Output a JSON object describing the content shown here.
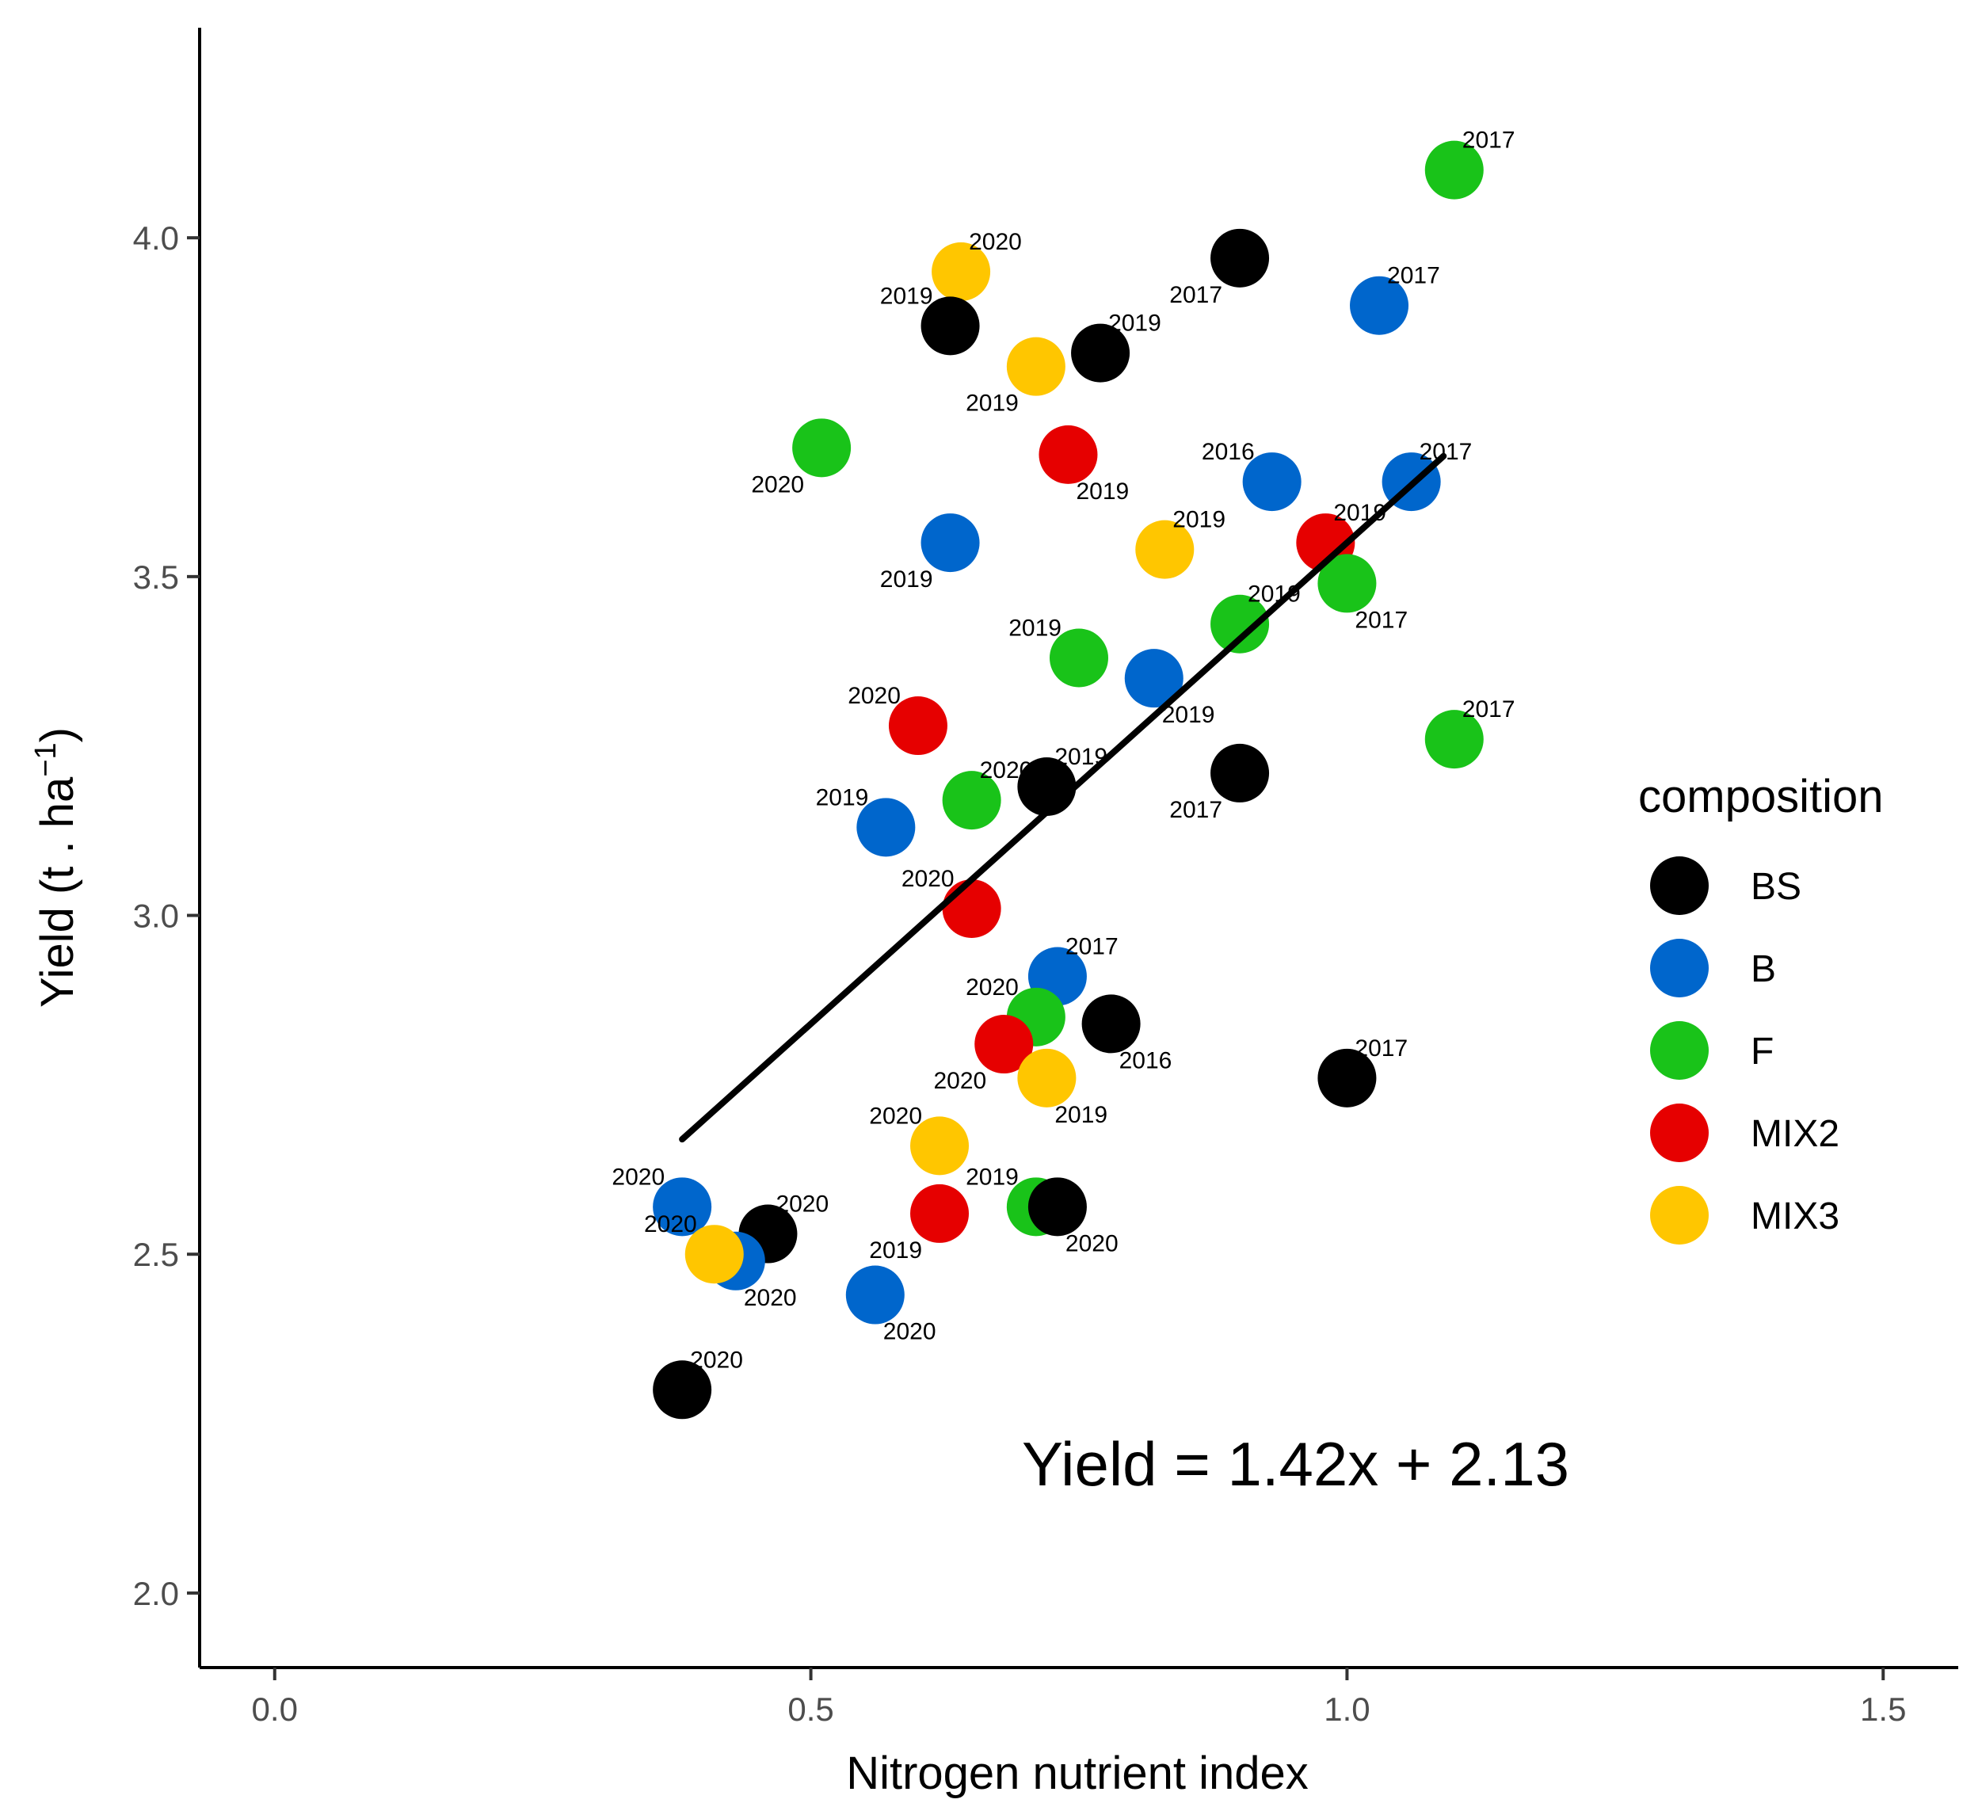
{
  "chart_data": {
    "type": "scatter",
    "title": "",
    "xlabel": "Nitrogen nutrient index",
    "ylabel_main": "Yield (t . ha",
    "ylabel_sup": "−1",
    "ylabel_close": ")",
    "xlim": [
      -0.07,
      1.57
    ],
    "ylim": [
      1.89,
      4.31
    ],
    "xticks": [
      0.0,
      0.5,
      1.0,
      1.5
    ],
    "xtick_labels": [
      "0.0",
      "0.5",
      "1.0",
      "1.5"
    ],
    "yticks": [
      2.0,
      2.5,
      3.0,
      3.5,
      4.0
    ],
    "ytick_labels": [
      "2.0",
      "2.5",
      "3.0",
      "3.5",
      "4.0"
    ],
    "grid": false,
    "legend": {
      "title": "composition",
      "position": "right",
      "entries": [
        {
          "key": "BS",
          "label": "BS",
          "color": "#000000"
        },
        {
          "key": "B",
          "label": "B",
          "color": "#0066cc"
        },
        {
          "key": "F",
          "label": "F",
          "color": "#19c319"
        },
        {
          "key": "MIX2",
          "label": "MIX2",
          "color": "#e60000"
        },
        {
          "key": "MIX3",
          "label": "MIX3",
          "color": "#ffc600"
        }
      ]
    },
    "fit_line": {
      "slope": 1.42,
      "intercept": 2.13,
      "x_range": [
        0.38,
        1.09
      ]
    },
    "annotation": "Yield = 1.42x + 2.13",
    "points": [
      {
        "group": "F",
        "x": 1.1,
        "y": 4.1,
        "year": "2017",
        "lpos": "ur"
      },
      {
        "group": "MIX3",
        "x": 0.64,
        "y": 3.95,
        "year": "2020",
        "lpos": "ur"
      },
      {
        "group": "BS",
        "x": 0.9,
        "y": 3.97,
        "year": "2017",
        "lpos": "ll"
      },
      {
        "group": "B",
        "x": 1.03,
        "y": 3.9,
        "year": "2017",
        "lpos": "ur"
      },
      {
        "group": "BS",
        "x": 0.63,
        "y": 3.87,
        "year": "2019",
        "lpos": "ul"
      },
      {
        "group": "BS",
        "x": 0.77,
        "y": 3.83,
        "year": "2019",
        "lpos": "ur"
      },
      {
        "group": "MIX3",
        "x": 0.71,
        "y": 3.81,
        "year": "2019",
        "lpos": "ll"
      },
      {
        "group": "F",
        "x": 0.51,
        "y": 3.69,
        "year": "2020",
        "lpos": "ll"
      },
      {
        "group": "MIX2",
        "x": 0.74,
        "y": 3.68,
        "year": "2019",
        "lpos": "lr"
      },
      {
        "group": "B",
        "x": 0.93,
        "y": 3.64,
        "year": "2016",
        "lpos": "ul"
      },
      {
        "group": "B",
        "x": 1.06,
        "y": 3.64,
        "year": "2017",
        "lpos": "ur"
      },
      {
        "group": "B",
        "x": 0.63,
        "y": 3.55,
        "year": "2019",
        "lpos": "ll"
      },
      {
        "group": "MIX3",
        "x": 0.83,
        "y": 3.54,
        "year": "2019",
        "lpos": "ur"
      },
      {
        "group": "MIX2",
        "x": 0.98,
        "y": 3.55,
        "year": "2019",
        "lpos": "ur"
      },
      {
        "group": "F",
        "x": 1.0,
        "y": 3.49,
        "year": "2017",
        "lpos": "lr"
      },
      {
        "group": "F",
        "x": 0.9,
        "y": 3.43,
        "year": "2019",
        "lpos": "ur"
      },
      {
        "group": "F",
        "x": 0.75,
        "y": 3.38,
        "year": "2019",
        "lpos": "ul"
      },
      {
        "group": "B",
        "x": 0.82,
        "y": 3.35,
        "year": "2019",
        "lpos": "lr"
      },
      {
        "group": "MIX2",
        "x": 0.6,
        "y": 3.28,
        "year": "2020",
        "lpos": "ul"
      },
      {
        "group": "F",
        "x": 1.1,
        "y": 3.26,
        "year": "2017",
        "lpos": "ur"
      },
      {
        "group": "BS",
        "x": 0.9,
        "y": 3.21,
        "year": "2017",
        "lpos": "ll"
      },
      {
        "group": "BS",
        "x": 0.72,
        "y": 3.19,
        "year": "2019",
        "lpos": "ur"
      },
      {
        "group": "F",
        "x": 0.65,
        "y": 3.17,
        "year": "2020",
        "lpos": "ur"
      },
      {
        "group": "B",
        "x": 0.57,
        "y": 3.13,
        "year": "2019",
        "lpos": "ul"
      },
      {
        "group": "MIX2",
        "x": 0.65,
        "y": 3.01,
        "year": "2020",
        "lpos": "ul"
      },
      {
        "group": "B",
        "x": 0.73,
        "y": 2.91,
        "year": "2017",
        "lpos": "ur"
      },
      {
        "group": "F",
        "x": 0.71,
        "y": 2.85,
        "year": "2020",
        "lpos": "ul"
      },
      {
        "group": "BS",
        "x": 0.78,
        "y": 2.84,
        "year": "2016",
        "lpos": "lr"
      },
      {
        "group": "MIX2",
        "x": 0.68,
        "y": 2.81,
        "year": "2020",
        "lpos": "ll"
      },
      {
        "group": "MIX3",
        "x": 0.72,
        "y": 2.76,
        "year": "2019",
        "lpos": "lr"
      },
      {
        "group": "BS",
        "x": 1.0,
        "y": 2.76,
        "year": "2017",
        "lpos": "ur"
      },
      {
        "group": "MIX3",
        "x": 0.62,
        "y": 2.66,
        "year": "2020",
        "lpos": "ul"
      },
      {
        "group": "F",
        "x": 0.71,
        "y": 2.57,
        "year": "2019",
        "lpos": "ul"
      },
      {
        "group": "MIX2",
        "x": 0.62,
        "y": 2.56,
        "year": "2019",
        "lpos": "ll"
      },
      {
        "group": "BS",
        "x": 0.73,
        "y": 2.57,
        "year": "2020",
        "lpos": "lr"
      },
      {
        "group": "B",
        "x": 0.38,
        "y": 2.57,
        "year": "2020",
        "lpos": "ul"
      },
      {
        "group": "BS",
        "x": 0.46,
        "y": 2.53,
        "year": "2020",
        "lpos": "ur"
      },
      {
        "group": "B",
        "x": 0.43,
        "y": 2.49,
        "year": "2020",
        "lpos": "lr"
      },
      {
        "group": "MIX3",
        "x": 0.41,
        "y": 2.5,
        "year": "2020",
        "lpos": "ul"
      },
      {
        "group": "B",
        "x": 0.56,
        "y": 2.44,
        "year": "2020",
        "lpos": "lr"
      },
      {
        "group": "BS",
        "x": 0.38,
        "y": 2.3,
        "year": "2020",
        "lpos": "ur"
      }
    ]
  }
}
